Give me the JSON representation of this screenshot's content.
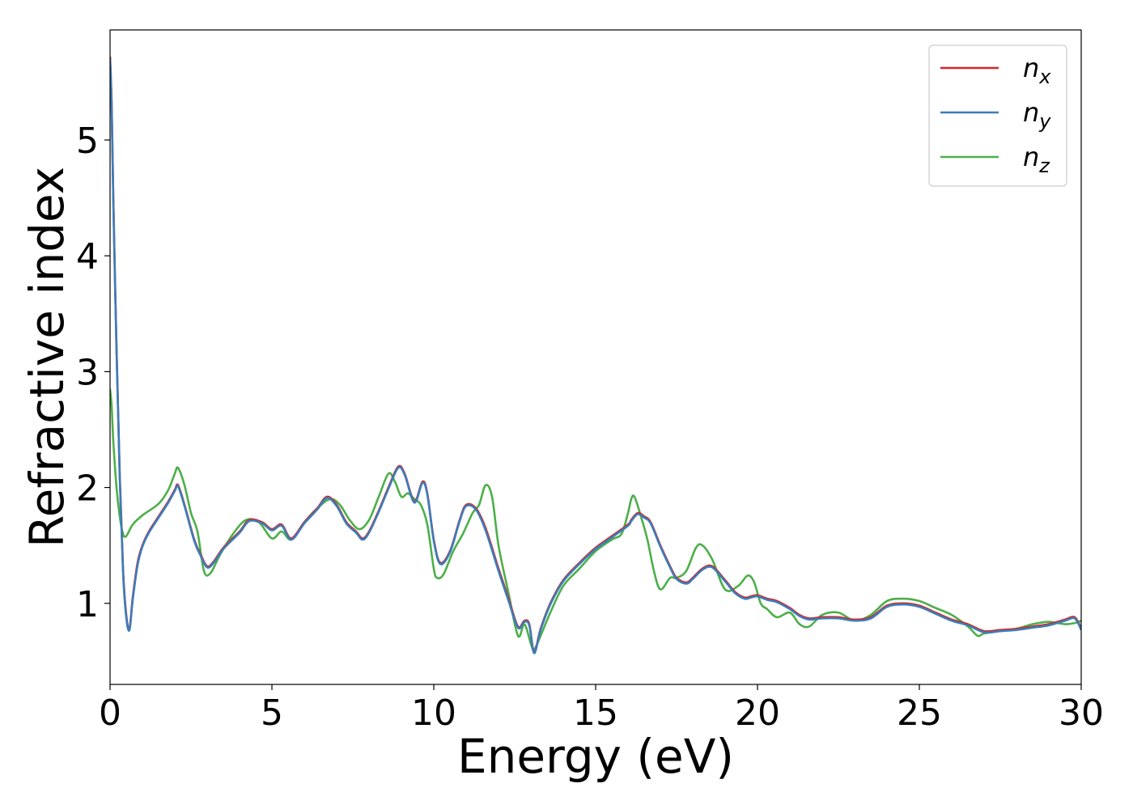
{
  "chart_data": {
    "type": "line",
    "title": "",
    "xlabel": "Energy (eV)",
    "ylabel": "Refractive index",
    "xlim": [
      0,
      30
    ],
    "ylim": [
      0.3,
      5.95
    ],
    "xticks": [
      0,
      5,
      10,
      15,
      20,
      25,
      30
    ],
    "yticks": [
      1,
      2,
      3,
      4,
      5
    ],
    "grid": false,
    "legend_position": "top-right",
    "series": [
      {
        "name": "n",
        "subscript": "x",
        "color": "#d62728",
        "x": [
          0,
          0.05,
          0.1,
          0.2,
          0.3,
          0.4,
          0.5,
          0.6,
          0.7,
          0.85,
          1.0,
          1.2,
          1.5,
          1.8,
          2.0,
          2.1,
          2.3,
          2.6,
          2.8,
          3.0,
          3.2,
          3.5,
          4.0,
          4.3,
          4.7,
          5.0,
          5.3,
          5.6,
          6.0,
          6.4,
          6.7,
          7.0,
          7.3,
          7.6,
          7.8,
          8.0,
          8.3,
          8.6,
          8.9,
          9.1,
          9.4,
          9.65,
          9.8,
          10.0,
          10.2,
          10.5,
          10.8,
          11.0,
          11.3,
          11.6,
          12.0,
          12.3,
          12.6,
          12.8,
          12.95,
          13.1,
          13.3,
          13.6,
          14.0,
          14.5,
          15.0,
          15.5,
          16.0,
          16.1,
          16.3,
          16.5,
          16.7,
          17.0,
          17.3,
          17.5,
          17.8,
          18.0,
          18.3,
          18.6,
          19.0,
          19.3,
          19.6,
          19.8,
          20.0,
          20.3,
          20.6,
          21.0,
          21.3,
          21.6,
          22.0,
          22.5,
          23.0,
          23.5,
          24.0,
          24.5,
          25.0,
          25.5,
          26.0,
          26.5,
          27.0,
          27.5,
          28.0,
          28.5,
          29.0,
          29.5,
          29.8,
          30.0
        ],
        "y": [
          5.72,
          5.3,
          4.5,
          3.2,
          2.1,
          1.3,
          0.9,
          0.78,
          1.05,
          1.35,
          1.5,
          1.62,
          1.75,
          1.88,
          1.98,
          2.02,
          1.85,
          1.55,
          1.42,
          1.32,
          1.36,
          1.48,
          1.62,
          1.72,
          1.7,
          1.64,
          1.68,
          1.56,
          1.7,
          1.82,
          1.92,
          1.85,
          1.7,
          1.62,
          1.56,
          1.62,
          1.8,
          2.0,
          2.18,
          2.12,
          1.88,
          2.05,
          1.95,
          1.55,
          1.35,
          1.45,
          1.72,
          1.85,
          1.82,
          1.65,
          1.3,
          1.05,
          0.8,
          0.85,
          0.82,
          0.58,
          0.78,
          1.0,
          1.2,
          1.35,
          1.48,
          1.58,
          1.68,
          1.72,
          1.78,
          1.75,
          1.7,
          1.5,
          1.32,
          1.22,
          1.18,
          1.22,
          1.3,
          1.32,
          1.2,
          1.1,
          1.05,
          1.06,
          1.07,
          1.04,
          1.02,
          0.96,
          0.9,
          0.87,
          0.88,
          0.88,
          0.86,
          0.88,
          0.98,
          1.0,
          0.98,
          0.92,
          0.86,
          0.82,
          0.76,
          0.77,
          0.78,
          0.8,
          0.82,
          0.86,
          0.88,
          0.78
        ]
      },
      {
        "name": "n",
        "subscript": "y",
        "color": "#3a7dbb",
        "x": [
          0,
          0.05,
          0.1,
          0.2,
          0.3,
          0.4,
          0.5,
          0.6,
          0.7,
          0.85,
          1.0,
          1.2,
          1.5,
          1.8,
          2.0,
          2.1,
          2.3,
          2.6,
          2.8,
          3.0,
          3.2,
          3.5,
          4.0,
          4.3,
          4.7,
          5.0,
          5.3,
          5.6,
          6.0,
          6.4,
          6.7,
          7.0,
          7.3,
          7.6,
          7.8,
          8.0,
          8.3,
          8.6,
          8.9,
          9.1,
          9.4,
          9.65,
          9.8,
          10.0,
          10.2,
          10.5,
          10.8,
          11.0,
          11.3,
          11.6,
          12.0,
          12.3,
          12.6,
          12.8,
          12.95,
          13.1,
          13.3,
          13.6,
          14.0,
          14.5,
          15.0,
          15.5,
          16.0,
          16.1,
          16.3,
          16.5,
          16.7,
          17.0,
          17.3,
          17.5,
          17.8,
          18.0,
          18.3,
          18.6,
          19.0,
          19.3,
          19.6,
          19.8,
          20.0,
          20.3,
          20.6,
          21.0,
          21.3,
          21.6,
          22.0,
          22.5,
          23.0,
          23.5,
          24.0,
          24.5,
          25.0,
          25.5,
          26.0,
          26.5,
          27.0,
          27.5,
          28.0,
          28.5,
          29.0,
          29.5,
          29.8,
          30.0
        ],
        "y": [
          5.7,
          5.28,
          4.48,
          3.18,
          2.08,
          1.28,
          0.88,
          0.77,
          1.03,
          1.33,
          1.49,
          1.61,
          1.74,
          1.87,
          1.97,
          2.01,
          1.84,
          1.54,
          1.41,
          1.31,
          1.35,
          1.47,
          1.61,
          1.71,
          1.69,
          1.63,
          1.67,
          1.55,
          1.69,
          1.81,
          1.91,
          1.84,
          1.69,
          1.61,
          1.55,
          1.61,
          1.79,
          1.99,
          2.17,
          2.11,
          1.87,
          2.04,
          1.94,
          1.54,
          1.34,
          1.44,
          1.71,
          1.84,
          1.81,
          1.63,
          1.28,
          1.03,
          0.79,
          0.84,
          0.81,
          0.57,
          0.77,
          0.99,
          1.19,
          1.34,
          1.47,
          1.57,
          1.67,
          1.71,
          1.77,
          1.74,
          1.69,
          1.49,
          1.31,
          1.21,
          1.17,
          1.21,
          1.29,
          1.31,
          1.19,
          1.09,
          1.04,
          1.05,
          1.06,
          1.03,
          1.01,
          0.95,
          0.89,
          0.86,
          0.87,
          0.87,
          0.85,
          0.87,
          0.97,
          0.99,
          0.97,
          0.91,
          0.85,
          0.81,
          0.75,
          0.76,
          0.77,
          0.79,
          0.81,
          0.85,
          0.87,
          0.77
        ]
      },
      {
        "name": "n",
        "subscript": "z",
        "color": "#4daf4a",
        "x": [
          0,
          0.05,
          0.1,
          0.2,
          0.3,
          0.4,
          0.5,
          0.7,
          1.0,
          1.5,
          1.8,
          2.0,
          2.1,
          2.3,
          2.5,
          2.7,
          2.9,
          3.1,
          3.4,
          3.8,
          4.2,
          4.6,
          5.0,
          5.3,
          5.6,
          6.0,
          6.4,
          6.8,
          7.1,
          7.4,
          7.7,
          8.0,
          8.3,
          8.6,
          8.8,
          9.0,
          9.2,
          9.4,
          9.6,
          9.8,
          10.0,
          10.1,
          10.3,
          10.6,
          10.9,
          11.2,
          11.4,
          11.6,
          11.8,
          12.0,
          12.3,
          12.6,
          12.8,
          13.0,
          13.1,
          13.3,
          13.6,
          14.0,
          14.5,
          15.0,
          15.5,
          15.8,
          16.0,
          16.1,
          16.2,
          16.4,
          16.6,
          16.8,
          17.0,
          17.3,
          17.5,
          17.8,
          18.1,
          18.3,
          18.6,
          19.0,
          19.4,
          19.7,
          19.9,
          20.1,
          20.3,
          20.6,
          21.0,
          21.3,
          21.6,
          22.0,
          22.5,
          23.0,
          23.5,
          24.0,
          24.5,
          25.0,
          25.5,
          26.0,
          26.5,
          26.8,
          27.0,
          27.5,
          28.0,
          28.5,
          29.0,
          29.5,
          29.8,
          30.0
        ],
        "y": [
          2.85,
          2.7,
          2.4,
          2.0,
          1.75,
          1.6,
          1.58,
          1.68,
          1.76,
          1.86,
          1.98,
          2.12,
          2.17,
          2.02,
          1.78,
          1.62,
          1.28,
          1.26,
          1.42,
          1.6,
          1.72,
          1.7,
          1.56,
          1.62,
          1.55,
          1.7,
          1.82,
          1.9,
          1.85,
          1.72,
          1.64,
          1.72,
          1.92,
          2.12,
          2.05,
          1.92,
          1.95,
          1.9,
          1.85,
          1.68,
          1.3,
          1.22,
          1.25,
          1.45,
          1.6,
          1.78,
          1.85,
          2.02,
          1.92,
          1.5,
          1.1,
          0.72,
          0.82,
          0.65,
          0.6,
          0.72,
          0.92,
          1.15,
          1.3,
          1.45,
          1.55,
          1.6,
          1.78,
          1.9,
          1.92,
          1.75,
          1.55,
          1.28,
          1.12,
          1.22,
          1.22,
          1.28,
          1.48,
          1.5,
          1.38,
          1.12,
          1.15,
          1.24,
          1.18,
          1.0,
          0.95,
          0.88,
          0.92,
          0.82,
          0.8,
          0.9,
          0.92,
          0.85,
          0.9,
          1.02,
          1.04,
          1.02,
          0.96,
          0.9,
          0.8,
          0.72,
          0.74,
          0.76,
          0.78,
          0.82,
          0.84,
          0.82,
          0.83,
          0.85
        ]
      }
    ]
  }
}
